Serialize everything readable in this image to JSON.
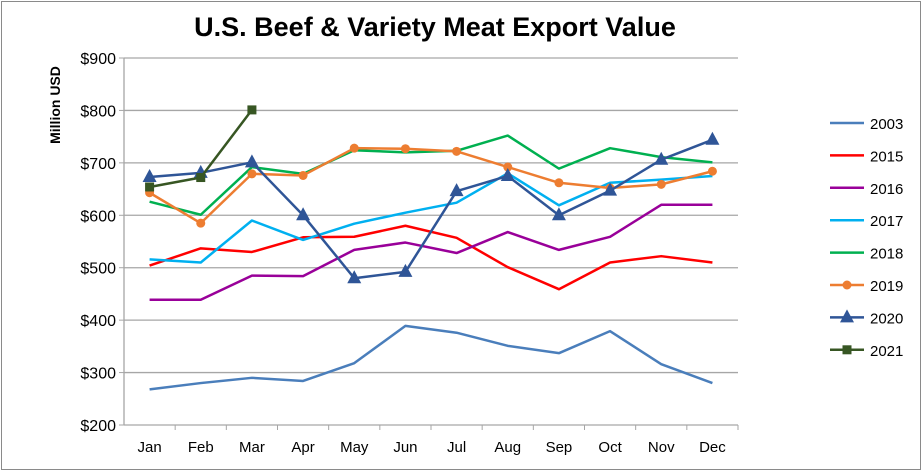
{
  "chart_data": {
    "type": "line",
    "title": "U.S. Beef & Variety Meat Export Value",
    "ylabel": "Million USD",
    "xlabel": "",
    "categories": [
      "Jan",
      "Feb",
      "Mar",
      "Apr",
      "May",
      "Jun",
      "Jul",
      "Aug",
      "Sep",
      "Oct",
      "Nov",
      "Dec"
    ],
    "ylim": [
      200,
      900
    ],
    "yticks": [
      200,
      300,
      400,
      500,
      600,
      700,
      800,
      900
    ],
    "ytick_labels": [
      "$200",
      "$300",
      "$400",
      "$500",
      "$600",
      "$700",
      "$800",
      "$900"
    ],
    "grid": "horizontal",
    "legend": "right",
    "series": [
      {
        "name": "2003",
        "color": "#4a7ebb",
        "marker": "none",
        "values": [
          268,
          280,
          290,
          284,
          318,
          389,
          376,
          351,
          337,
          379,
          316,
          280
        ]
      },
      {
        "name": "2015",
        "color": "#ff0000",
        "marker": "none",
        "values": [
          504,
          537,
          530,
          558,
          559,
          580,
          557,
          501,
          459,
          510,
          522,
          510
        ]
      },
      {
        "name": "2016",
        "color": "#990099",
        "marker": "none",
        "values": [
          439,
          439,
          485,
          484,
          534,
          548,
          528,
          568,
          534,
          559,
          620,
          620
        ]
      },
      {
        "name": "2017",
        "color": "#00b0f0",
        "marker": "none",
        "values": [
          516,
          510,
          590,
          553,
          584,
          605,
          624,
          680,
          619,
          662,
          668,
          675
        ]
      },
      {
        "name": "2018",
        "color": "#00b050",
        "marker": "none",
        "values": [
          626,
          601,
          692,
          679,
          724,
          720,
          723,
          752,
          689,
          728,
          711,
          701
        ]
      },
      {
        "name": "2019",
        "color": "#ed7d31",
        "marker": "circle",
        "values": [
          643,
          585,
          679,
          676,
          728,
          727,
          722,
          692,
          662,
          652,
          659,
          684
        ]
      },
      {
        "name": "2020",
        "color": "#2f5597",
        "marker": "triangle",
        "values": [
          673,
          681,
          701,
          600,
          480,
          492,
          646,
          675,
          600,
          647,
          706,
          744
        ]
      },
      {
        "name": "2021",
        "color": "#375623",
        "marker": "square",
        "values": [
          654,
          672,
          801,
          null,
          null,
          null,
          null,
          null,
          null,
          null,
          null,
          null
        ]
      }
    ]
  }
}
